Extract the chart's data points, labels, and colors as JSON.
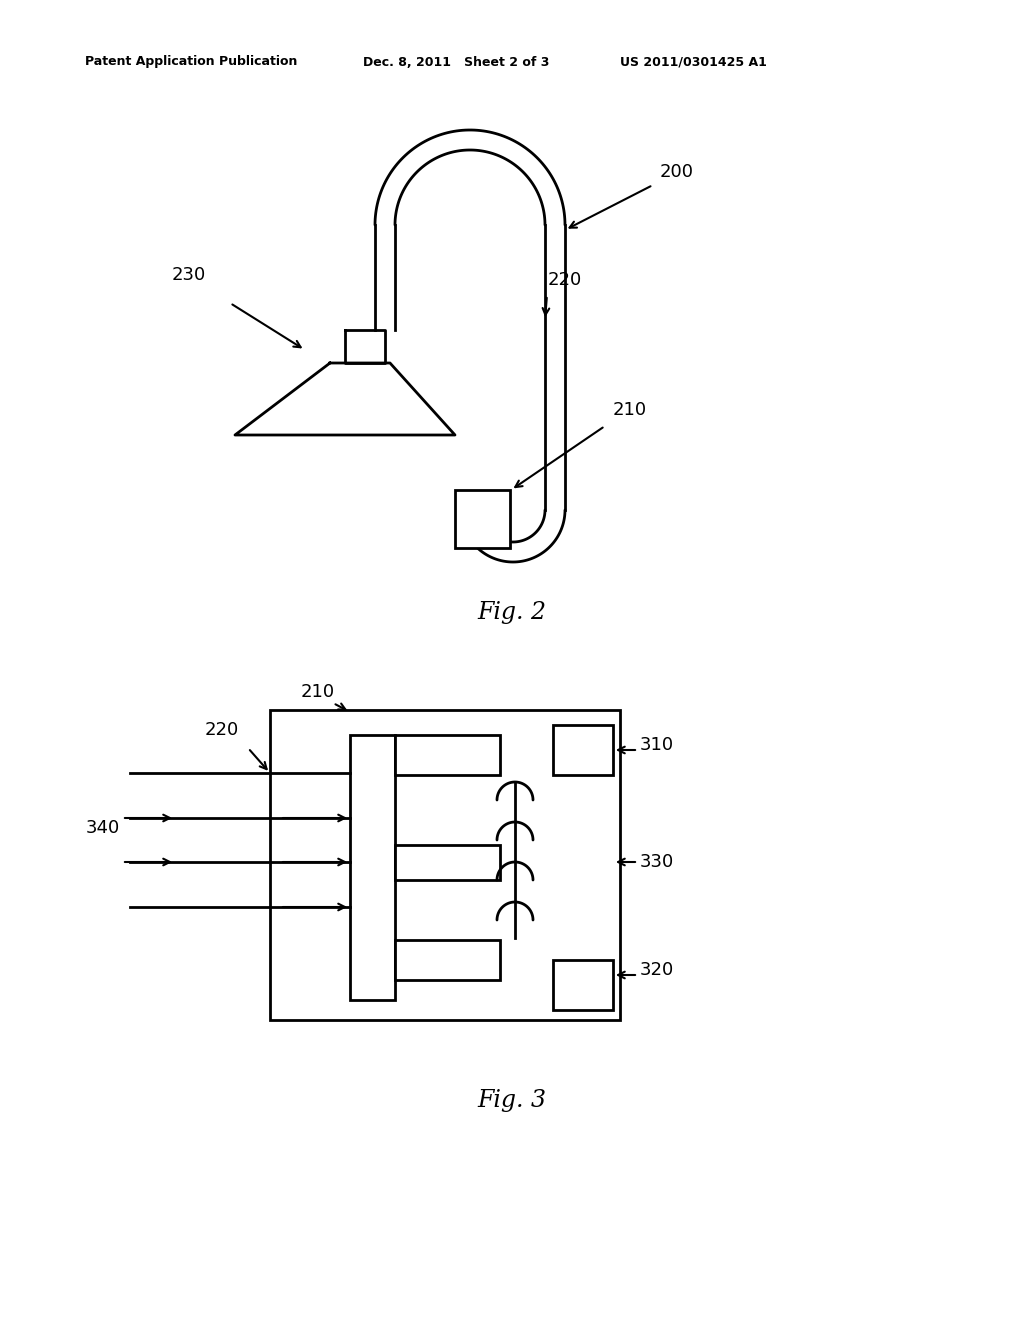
{
  "bg_color": "#ffffff",
  "line_color": "#000000",
  "header_left": "Patent Application Publication",
  "header_mid": "Dec. 8, 2011   Sheet 2 of 3",
  "header_right": "US 2011/0301425 A1",
  "fig2_label": "Fig. 2",
  "fig3_label": "Fig. 3"
}
